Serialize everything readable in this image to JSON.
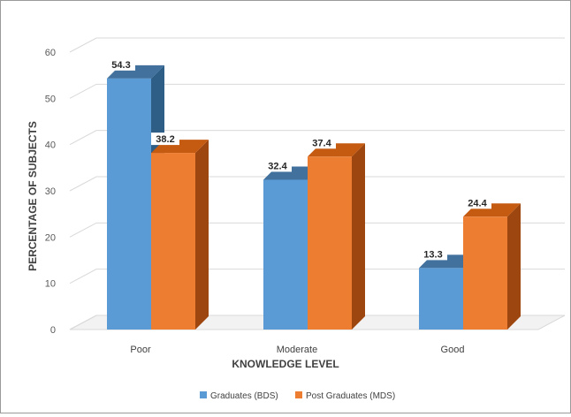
{
  "chart_data": {
    "type": "bar",
    "title": "",
    "xlabel": "KNOWLEDGE LEVEL",
    "ylabel": "PERCENTAGE OF SUBJECTS",
    "categories": [
      "Poor",
      "Moderate",
      "Good"
    ],
    "series": [
      {
        "name": "Graduates (BDS)",
        "values": [
          54.3,
          32.4,
          13.3
        ],
        "color": "#5b9bd5"
      },
      {
        "name": "Post Graduates (MDS)",
        "values": [
          38.2,
          37.4,
          24.4
        ],
        "color": "#ed7d31"
      }
    ],
    "ylim": [
      0,
      60
    ],
    "yticks": [
      0,
      10,
      20,
      30,
      40,
      50,
      60
    ],
    "grid": true,
    "legend": "bottom",
    "style": "3d-bars"
  }
}
